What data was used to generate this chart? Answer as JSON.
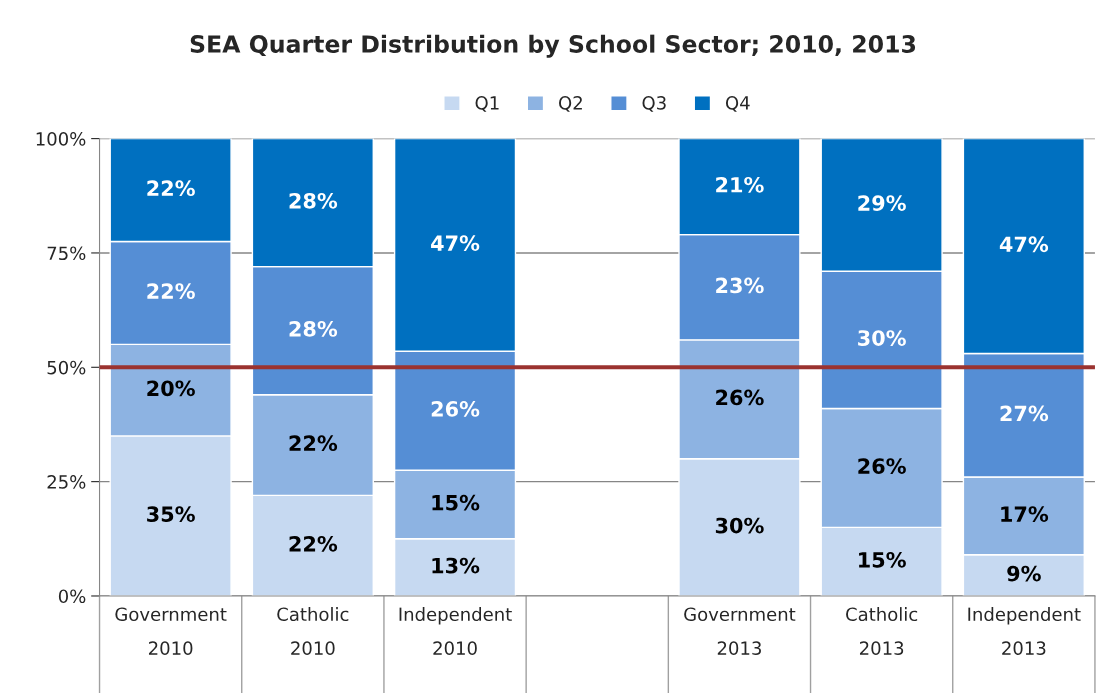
{
  "chart_data": {
    "type": "bar",
    "stacked": true,
    "title": "SEA Quarter Distribution by School Sector; 2010, 2013",
    "categories": [
      "Government\n2010",
      "Catholic\n2010",
      "Independent\n2010",
      null,
      "Government\n2013",
      "Catholic\n2013",
      "Independent\n2013"
    ],
    "series": [
      {
        "name": "Q1",
        "color": "#c6d9f1",
        "values": [
          35,
          22,
          12.5,
          null,
          30,
          15,
          9
        ],
        "value_labels": [
          "35%",
          "22%",
          "13%",
          null,
          "30%",
          "15%",
          "9%"
        ]
      },
      {
        "name": "Q2",
        "color": "#8db3e2",
        "values": [
          20,
          22,
          15,
          null,
          26,
          26,
          17
        ],
        "value_labels": [
          "20%",
          "22%",
          "15%",
          null,
          "26%",
          "26%",
          "17%"
        ]
      },
      {
        "name": "Q3",
        "color": "#558ed5",
        "values": [
          22.5,
          28,
          26,
          null,
          23,
          30,
          27
        ],
        "value_labels": [
          "22%",
          "28%",
          "26%",
          null,
          "23%",
          "30%",
          "27%"
        ]
      },
      {
        "name": "Q4",
        "color": "#0070c0",
        "values": [
          22.5,
          28,
          46.5,
          null,
          21,
          29,
          47
        ],
        "value_labels": [
          "22%",
          "28%",
          "47%",
          null,
          "21%",
          "29%",
          "47%"
        ]
      }
    ],
    "ylim": [
      0,
      100
    ],
    "yticks": [
      {
        "value": 0,
        "label": "0%"
      },
      {
        "value": 25,
        "label": "25%"
      },
      {
        "value": 50,
        "label": "50%"
      },
      {
        "value": 75,
        "label": "75%"
      },
      {
        "value": 100,
        "label": "100%"
      }
    ],
    "ref_lines": [
      {
        "axis": "y",
        "value": 50,
        "color": "#9b3330",
        "line_style": "solid"
      }
    ],
    "grid": "y",
    "legend": "top"
  }
}
